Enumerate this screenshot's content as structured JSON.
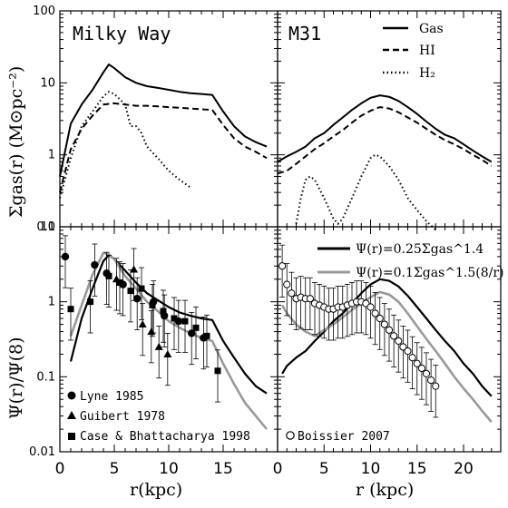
{
  "colors": {
    "black": "#000000",
    "gray": "#999999"
  },
  "labels": {
    "ylabel_top": "Σgas(r)  (M⊙pc⁻²)",
    "ylabel_bottom": "Ψ(r)/Ψ(8)",
    "xlabel_left": "r(kpc)",
    "xlabel_right": "r  (kpc)"
  },
  "legends": {
    "top_right": [
      {
        "label": "Gas",
        "style": "solid"
      },
      {
        "label": "HI",
        "style": "dashed"
      },
      {
        "label": "H₂",
        "style": "dotted"
      }
    ],
    "bottom_right": [
      {
        "label": "Ψ(r)=0.25Σgas^1.4",
        "color": "black"
      },
      {
        "label": "Ψ(r)=0.1Σgas^1.5(8/r)",
        "color": "gray"
      }
    ],
    "bottom_left": [
      {
        "label": "Lyne 1985",
        "marker": "circle"
      },
      {
        "label": "Guibert 1978",
        "marker": "triangle"
      },
      {
        "label": "Case & Bhattacharya 1998",
        "marker": "square"
      }
    ],
    "bottom_right_obs": {
      "label": "Boissier 2007",
      "marker": "open-circle"
    }
  },
  "chart_data": [
    {
      "panel": "top-left",
      "type": "line",
      "title": "Milky Way",
      "xlim": [
        0,
        20
      ],
      "ylim": [
        0.1,
        100
      ],
      "yscale": "log",
      "xticks": [
        0,
        5,
        10,
        15
      ],
      "yticks": [
        "0.1",
        "1",
        "10",
        "100"
      ],
      "series": [
        {
          "name": "Gas",
          "style": "solid",
          "x": [
            0,
            1,
            2,
            3,
            4,
            4.5,
            5,
            6,
            7,
            8,
            9,
            10,
            11,
            12,
            13,
            14,
            15,
            16,
            17,
            18,
            19
          ],
          "y": [
            0.5,
            2.7,
            5,
            8,
            14,
            18,
            16,
            12,
            10,
            9,
            8.5,
            8,
            7.5,
            7.2,
            7,
            6.8,
            4,
            2.5,
            1.8,
            1.5,
            1.3
          ]
        },
        {
          "name": "HI",
          "style": "dashed",
          "x": [
            0,
            1,
            2,
            3,
            4,
            5,
            6,
            7,
            8,
            9,
            10,
            11,
            12,
            13,
            14,
            15,
            16,
            17,
            18,
            19
          ],
          "y": [
            0.3,
            1.2,
            2.3,
            3.5,
            5,
            5.2,
            5,
            4.8,
            4.8,
            4.7,
            4.6,
            4.5,
            4.4,
            4.3,
            4.2,
            2.6,
            1.7,
            1.3,
            1.1,
            0.9
          ]
        },
        {
          "name": "H2",
          "style": "dotted",
          "x": [
            0,
            1,
            2,
            3,
            4,
            4.5,
            5,
            6,
            6.5,
            7,
            7.5,
            8,
            9,
            10,
            11,
            12
          ],
          "y": [
            0.25,
            0.9,
            2.5,
            4,
            6.5,
            7.5,
            7,
            5,
            2.5,
            2.5,
            2,
            1.3,
            0.9,
            0.6,
            0.45,
            0.35
          ]
        }
      ]
    },
    {
      "panel": "top-right",
      "type": "line",
      "title": "M31",
      "xlim": [
        0,
        24
      ],
      "ylim": [
        0.1,
        100
      ],
      "yscale": "log",
      "xticks": [
        0,
        5,
        10,
        15,
        20
      ],
      "series": [
        {
          "name": "Gas",
          "style": "solid",
          "x": [
            0,
            1,
            2,
            3,
            4,
            5,
            6,
            7,
            8,
            9,
            10,
            11,
            12,
            13,
            14,
            15,
            16,
            17,
            18,
            19,
            20,
            21,
            22,
            23
          ],
          "y": [
            0.8,
            0.95,
            1.1,
            1.3,
            1.7,
            2.0,
            2.6,
            3.3,
            4.2,
            5.2,
            6.2,
            6.7,
            6.4,
            5.6,
            4.6,
            3.7,
            2.9,
            2.3,
            1.9,
            1.7,
            1.4,
            1.15,
            0.95,
            0.8
          ]
        },
        {
          "name": "HI",
          "style": "dashed",
          "x": [
            0,
            1,
            2,
            3,
            4,
            5,
            6,
            7,
            8,
            9,
            10,
            11,
            12,
            13,
            14,
            15,
            16,
            17,
            18,
            19,
            20,
            21,
            22,
            23
          ],
          "y": [
            0.55,
            0.6,
            0.75,
            0.95,
            1.2,
            1.45,
            1.8,
            2.2,
            2.8,
            3.5,
            4.1,
            4.6,
            4.4,
            3.9,
            3.3,
            2.8,
            2.3,
            1.9,
            1.6,
            1.4,
            1.2,
            1.0,
            0.85,
            0.7
          ]
        },
        {
          "name": "H2",
          "style": "dotted",
          "x": [
            2,
            2.5,
            3,
            3.5,
            4,
            5,
            6,
            6.5,
            7,
            8,
            9,
            10,
            10.5,
            11,
            12,
            13,
            14,
            15,
            16,
            17
          ],
          "y": [
            0.11,
            0.25,
            0.45,
            0.5,
            0.45,
            0.25,
            0.13,
            0.11,
            0.13,
            0.25,
            0.5,
            0.9,
            1.0,
            0.95,
            0.7,
            0.45,
            0.25,
            0.17,
            0.12,
            0.09
          ]
        }
      ]
    },
    {
      "panel": "bottom-left",
      "type": "line",
      "xlim": [
        0,
        20
      ],
      "ylim": [
        0.01,
        10
      ],
      "yscale": "log",
      "xticks": [
        0,
        5,
        10,
        15
      ],
      "yticks": [
        "0.01",
        "0.1",
        "1",
        "10"
      ],
      "series": [
        {
          "name": "Ψ(r)=0.25Σgas^1.4",
          "color": "black",
          "x": [
            1,
            2,
            3,
            4,
            4.5,
            5,
            6,
            7,
            8,
            9,
            10,
            11,
            12,
            13,
            14,
            15,
            16,
            17,
            18,
            19
          ],
          "y": [
            0.16,
            0.6,
            1.5,
            3.5,
            4.2,
            3.7,
            2.6,
            1.8,
            1.3,
            1.05,
            0.85,
            0.72,
            0.65,
            0.6,
            0.57,
            0.3,
            0.18,
            0.11,
            0.075,
            0.06
          ]
        },
        {
          "name": "Ψ(r)=0.1Σgas^1.5(8/r)",
          "color": "gray",
          "x": [
            1,
            2,
            3,
            4,
            4.5,
            5,
            6,
            7,
            8,
            9,
            10,
            11,
            12,
            13,
            14,
            15,
            16,
            17,
            18,
            19
          ],
          "y": [
            0.35,
            0.9,
            2.3,
            4.5,
            4.3,
            3.7,
            2.2,
            1.5,
            1.0,
            0.75,
            0.55,
            0.45,
            0.38,
            0.33,
            0.3,
            0.15,
            0.08,
            0.045,
            0.03,
            0.02
          ]
        }
      ],
      "points": {
        "Lyne 1985": {
          "x": [
            0.5,
            3.2,
            4.3,
            5.8,
            7.1,
            8.6,
            9.6,
            10.9,
            12.1,
            13.2
          ],
          "y": [
            4.0,
            3.1,
            2.4,
            1.7,
            1.1,
            1.0,
            0.65,
            0.55,
            0.38,
            0.33
          ]
        },
        "Guibert 1978": {
          "x": [
            5.2,
            6.8,
            7.6,
            8.4,
            9.1,
            9.9
          ],
          "y": [
            2.0,
            2.7,
            0.5,
            0.4,
            0.25,
            0.2
          ]
        },
        "Case & Bhattacharya 1998": {
          "x": [
            1.0,
            2.8,
            4.5,
            5.5,
            6.5,
            7.5,
            8.5,
            9.5,
            10.5,
            11.5,
            12.5,
            13.5,
            14.5
          ],
          "y": [
            0.8,
            1.0,
            2.2,
            1.8,
            1.4,
            1.5,
            0.9,
            0.75,
            0.6,
            0.55,
            0.45,
            0.35,
            0.12
          ]
        }
      }
    },
    {
      "panel": "bottom-right",
      "type": "line",
      "xlim": [
        0,
        24
      ],
      "ylim": [
        0.01,
        10
      ],
      "yscale": "log",
      "xticks": [
        0,
        5,
        10,
        15,
        20
      ],
      "series": [
        {
          "name": "Ψ(r)=0.25Σgas^1.4",
          "color": "black",
          "x": [
            0.5,
            1,
            2,
            3,
            4,
            5,
            6,
            7,
            8,
            9,
            10,
            11,
            12,
            13,
            14,
            15,
            16,
            17,
            18,
            19,
            20,
            21,
            22,
            23
          ],
          "y": [
            0.11,
            0.14,
            0.18,
            0.22,
            0.3,
            0.4,
            0.55,
            0.7,
            0.95,
            1.3,
            1.7,
            2.0,
            1.9,
            1.6,
            1.2,
            0.85,
            0.6,
            0.42,
            0.3,
            0.22,
            0.15,
            0.11,
            0.075,
            0.055
          ]
        },
        {
          "name": "Ψ(r)=0.1Σgas^1.5(8/r)",
          "color": "gray",
          "x": [
            0.5,
            1,
            2,
            3,
            4,
            5,
            6,
            7,
            8,
            9,
            10,
            11,
            12,
            13,
            14,
            15,
            16,
            17,
            18,
            19,
            20,
            21,
            22,
            23
          ],
          "y": [
            0.9,
            0.7,
            0.5,
            0.4,
            0.35,
            0.42,
            0.5,
            0.62,
            0.78,
            0.95,
            1.15,
            1.35,
            1.25,
            1.0,
            0.7,
            0.47,
            0.32,
            0.22,
            0.15,
            0.1,
            0.07,
            0.05,
            0.035,
            0.025
          ]
        }
      ],
      "points": {
        "Boissier 2007": {
          "x": [
            0.5,
            1.0,
            1.5,
            2.0,
            2.5,
            3.0,
            3.5,
            4.0,
            4.5,
            5.0,
            5.5,
            6.0,
            6.5,
            7.0,
            7.5,
            8.0,
            8.5,
            9.0,
            9.5,
            10.0,
            10.5,
            11.0,
            11.5,
            12.0,
            12.5,
            13.0,
            13.5,
            14.0,
            14.5,
            15.0,
            15.5,
            16.0,
            16.5,
            17.0
          ],
          "y": [
            3.0,
            1.7,
            1.3,
            1.1,
            1.15,
            1.1,
            1.1,
            0.95,
            0.9,
            0.85,
            0.8,
            0.8,
            0.85,
            0.85,
            0.9,
            0.95,
            1.0,
            1.0,
            0.95,
            0.85,
            0.7,
            0.6,
            0.5,
            0.42,
            0.35,
            0.3,
            0.25,
            0.22,
            0.18,
            0.15,
            0.13,
            0.11,
            0.09,
            0.075
          ]
        }
      }
    }
  ]
}
